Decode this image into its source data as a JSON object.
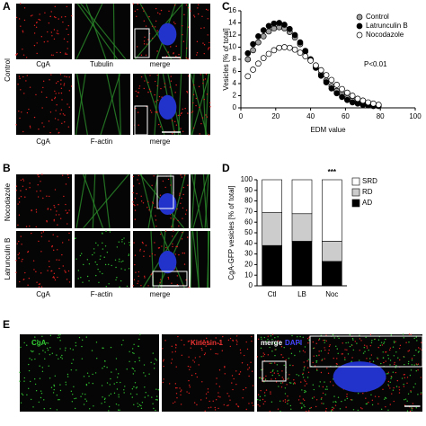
{
  "figure": {
    "panel_letters": [
      "A",
      "B",
      "C",
      "D",
      "E"
    ],
    "A": {
      "row_labels": [
        "Control"
      ],
      "column_labels": [
        "CgA",
        "Tubulin",
        "merge",
        "CgA",
        "F-actin",
        "merge"
      ]
    },
    "B": {
      "row_labels": [
        "Nocodazole",
        "Latrunculin B"
      ],
      "column_labels": [
        "CgA",
        "F-actin",
        "merge"
      ]
    },
    "E": {
      "column_labels": [
        "CgA",
        "Kinesin-1",
        "merge",
        "DAPI"
      ]
    }
  },
  "chart_data": [
    {
      "type": "scatter",
      "x_label": "EDM value",
      "y_label": "Vesicles [% of total]",
      "annotation": "P<0.01",
      "x": [
        4,
        7,
        10,
        13,
        16,
        19,
        22,
        25,
        28,
        31,
        34,
        37,
        40,
        43,
        46,
        49,
        52,
        55,
        58,
        61,
        64,
        67,
        70,
        73,
        76,
        79
      ],
      "series": [
        {
          "name": "Control",
          "color": "#a0a0a0",
          "values": [
            8.0,
            9.5,
            10.8,
            11.8,
            12.6,
            13.1,
            13.3,
            13.1,
            12.5,
            11.6,
            10.5,
            9.3,
            8.0,
            6.8,
            5.6,
            4.5,
            3.6,
            2.8,
            2.2,
            1.6,
            1.2,
            0.9,
            0.7,
            0.6,
            0.5,
            0.4
          ]
        },
        {
          "name": "Latrunculin B",
          "color": "#000000",
          "values": [
            9.0,
            10.5,
            11.8,
            12.8,
            13.5,
            13.9,
            14.0,
            13.7,
            13.0,
            12.0,
            10.8,
            9.4,
            8.0,
            6.6,
            5.3,
            4.2,
            3.2,
            2.4,
            1.8,
            1.3,
            0.9,
            0.7,
            0.5,
            0.4,
            0.3,
            0.3
          ]
        },
        {
          "name": "Nocodazole",
          "color": "#ffffff",
          "values": [
            5.2,
            6.3,
            7.3,
            8.2,
            8.9,
            9.5,
            9.9,
            10.0,
            9.9,
            9.6,
            9.1,
            8.5,
            7.8,
            7.0,
            6.2,
            5.4,
            4.6,
            3.8,
            3.1,
            2.5,
            2.0,
            1.5,
            1.2,
            0.9,
            0.7,
            0.5
          ]
        }
      ],
      "xlim": [
        0,
        100
      ],
      "xticks": [
        0,
        20,
        40,
        60,
        80,
        100
      ],
      "ylim": [
        0,
        16
      ],
      "yticks": [
        0,
        2,
        4,
        6,
        8,
        10,
        12,
        14,
        16
      ]
    },
    {
      "type": "stacked_bar",
      "y_label": "CgA-GFP vesicles [% of total]",
      "annotation": "***",
      "categories": [
        "Ctl",
        "LB",
        "Noc"
      ],
      "series": [
        {
          "name": "AD",
          "color": "#000000",
          "values": [
            38,
            42,
            23
          ]
        },
        {
          "name": "RD",
          "color": "#cccccc",
          "values": [
            31,
            26,
            19
          ]
        },
        {
          "name": "SRD",
          "color": "#ffffff",
          "values": [
            31,
            32,
            58
          ]
        }
      ],
      "ylim": [
        0,
        100
      ],
      "yticks": [
        0,
        10,
        20,
        30,
        40,
        50,
        60,
        70,
        80,
        90,
        100
      ]
    }
  ]
}
